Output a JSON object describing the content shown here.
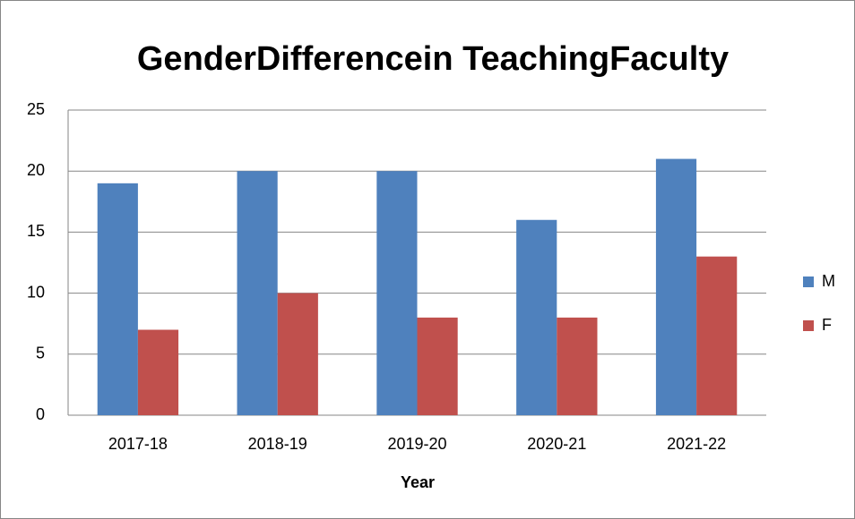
{
  "chart_data": {
    "type": "bar",
    "title": "GenderDifferencein TeachingFaculty",
    "x_label": "Year",
    "categories": [
      "2017-18",
      "2018-19",
      "2019-20",
      "2020-21",
      "2021-22"
    ],
    "series": [
      {
        "name": "M",
        "color": "#4f81bd",
        "values": [
          19,
          20,
          20,
          16,
          21
        ]
      },
      {
        "name": "F",
        "color": "#c0504d",
        "values": [
          7,
          10,
          8,
          8,
          13
        ]
      }
    ],
    "ylim": [
      0,
      25
    ],
    "yticks": [
      0,
      5,
      10,
      15,
      20,
      25
    ],
    "grid": true,
    "legend": "right"
  }
}
